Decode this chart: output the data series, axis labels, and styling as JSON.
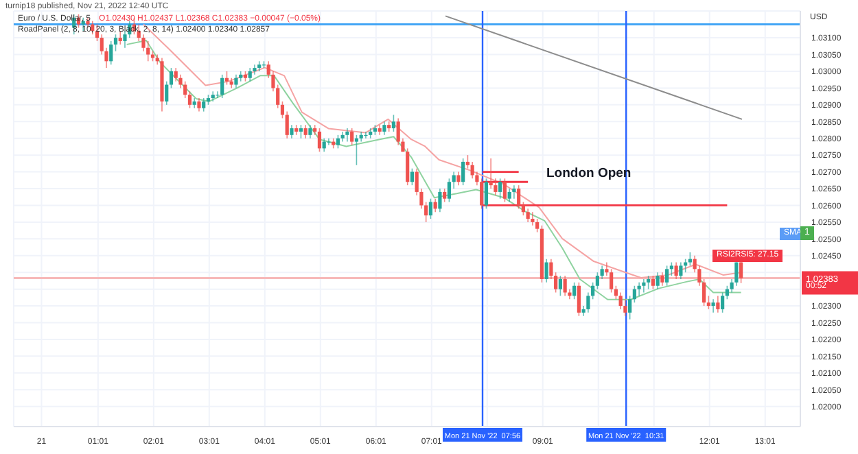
{
  "chart_data": {
    "type": "candlestick",
    "title": "Euro / U.S. Dollar, 5",
    "subtitle": "O1.02430 H1.02437 L1.02368 C1.02383 −0.00047 (−0.05%)",
    "ylabel": "USD",
    "annotations": [
      "London Open",
      "SMA",
      "1",
      "RSI2RSI5: 27.15",
      "00:52",
      "turnip18 published, Nov 21, 2022 12:40 UTC",
      "RoadPanel (2, 8, 10, 20, 3, Black, 2, 8, 14) 1.02400 1.02340 1.02857"
    ],
    "x": [
      "2022-11-21T00:35",
      "2022-11-21T00:40",
      "2022-11-21T00:45",
      "2022-11-21T00:50",
      "2022-11-21T00:55",
      "2022-11-21T01:00",
      "2022-11-21T01:05",
      "2022-11-21T01:10",
      "2022-11-21T01:15",
      "2022-11-21T01:20",
      "2022-11-21T01:25",
      "2022-11-21T01:30",
      "2022-11-21T01:35",
      "2022-11-21T01:40",
      "2022-11-21T01:45",
      "2022-11-21T01:50",
      "2022-11-21T01:55",
      "2022-11-21T02:00",
      "2022-11-21T02:05",
      "2022-11-21T02:10",
      "2022-11-21T02:15",
      "2022-11-21T02:20",
      "2022-11-21T02:25",
      "2022-11-21T02:30",
      "2022-11-21T02:35",
      "2022-11-21T02:40",
      "2022-11-21T02:45",
      "2022-11-21T02:50",
      "2022-11-21T02:55",
      "2022-11-21T03:00",
      "2022-11-21T03:05",
      "2022-11-21T03:10",
      "2022-11-21T03:15",
      "2022-11-21T03:20",
      "2022-11-21T03:25",
      "2022-11-21T03:30",
      "2022-11-21T03:35",
      "2022-11-21T03:40",
      "2022-11-21T03:45",
      "2022-11-21T03:50",
      "2022-11-21T03:55",
      "2022-11-21T04:00",
      "2022-11-21T04:05",
      "2022-11-21T04:10",
      "2022-11-21T04:15",
      "2022-11-21T04:20",
      "2022-11-21T04:25",
      "2022-11-21T04:30",
      "2022-11-21T04:35",
      "2022-11-21T04:40",
      "2022-11-21T04:45",
      "2022-11-21T04:50",
      "2022-11-21T04:55",
      "2022-11-21T05:00",
      "2022-11-21T05:05",
      "2022-11-21T05:10",
      "2022-11-21T05:15",
      "2022-11-21T05:20",
      "2022-11-21T05:25",
      "2022-11-21T05:30",
      "2022-11-21T05:35",
      "2022-11-21T05:40",
      "2022-11-21T05:45",
      "2022-11-21T05:50",
      "2022-11-21T05:55",
      "2022-11-21T06:00",
      "2022-11-21T06:05",
      "2022-11-21T06:10",
      "2022-11-21T06:15",
      "2022-11-21T06:20",
      "2022-11-21T06:25",
      "2022-11-21T06:30",
      "2022-11-21T06:35",
      "2022-11-21T06:40",
      "2022-11-21T06:45",
      "2022-11-21T06:50",
      "2022-11-21T06:55",
      "2022-11-21T07:00",
      "2022-11-21T07:05",
      "2022-11-21T07:10",
      "2022-11-21T07:15",
      "2022-11-21T07:20",
      "2022-11-21T07:25",
      "2022-11-21T07:30",
      "2022-11-21T07:35",
      "2022-11-21T07:40",
      "2022-11-21T07:45",
      "2022-11-21T07:50",
      "2022-11-21T07:55",
      "2022-11-21T08:00",
      "2022-11-21T08:05",
      "2022-11-21T08:10",
      "2022-11-21T08:15",
      "2022-11-21T08:20",
      "2022-11-21T08:25",
      "2022-11-21T08:30",
      "2022-11-21T08:35",
      "2022-11-21T08:40",
      "2022-11-21T08:45",
      "2022-11-21T08:50",
      "2022-11-21T08:55",
      "2022-11-21T09:00",
      "2022-11-21T09:05",
      "2022-11-21T09:10",
      "2022-11-21T09:15",
      "2022-11-21T09:20",
      "2022-11-21T09:25",
      "2022-11-21T09:30",
      "2022-11-21T09:35",
      "2022-11-21T09:40",
      "2022-11-21T09:45",
      "2022-11-21T09:50",
      "2022-11-21T09:55",
      "2022-11-21T10:00",
      "2022-11-21T10:05",
      "2022-11-21T10:10",
      "2022-11-21T10:15",
      "2022-11-21T10:20",
      "2022-11-21T10:25",
      "2022-11-21T10:30",
      "2022-11-21T10:35",
      "2022-11-21T10:40",
      "2022-11-21T10:45",
      "2022-11-21T10:50",
      "2022-11-21T10:55",
      "2022-11-21T11:00",
      "2022-11-21T11:05",
      "2022-11-21T11:10",
      "2022-11-21T11:15",
      "2022-11-21T11:20",
      "2022-11-21T11:25",
      "2022-11-21T11:30",
      "2022-11-21T11:35",
      "2022-11-21T11:40",
      "2022-11-21T11:45",
      "2022-11-21T11:50",
      "2022-11-21T11:55",
      "2022-11-21T12:00",
      "2022-11-21T12:05",
      "2022-11-21T12:10",
      "2022-11-21T12:15",
      "2022-11-21T12:20",
      "2022-11-21T12:25",
      "2022-11-21T12:30",
      "2022-11-21T12:35"
    ],
    "ohlc": [
      [
        1.0313,
        1.0317,
        1.0311,
        1.0316
      ],
      [
        1.0316,
        1.0317,
        1.0313,
        1.0314
      ],
      [
        1.0314,
        1.0316,
        1.0312,
        1.0315
      ],
      [
        1.0315,
        1.0316,
        1.0313,
        1.0314
      ],
      [
        1.0314,
        1.0315,
        1.0311,
        1.0312
      ],
      [
        1.0312,
        1.0314,
        1.0309,
        1.031
      ],
      [
        1.031,
        1.0311,
        1.0305,
        1.0306
      ],
      [
        1.0306,
        1.0307,
        1.0301,
        1.0303
      ],
      [
        1.0303,
        1.0309,
        1.0302,
        1.0308
      ],
      [
        1.0308,
        1.0311,
        1.0306,
        1.031
      ],
      [
        1.031,
        1.0312,
        1.0308,
        1.0309
      ],
      [
        1.0309,
        1.0312,
        1.0307,
        1.0311
      ],
      [
        1.0311,
        1.0315,
        1.031,
        1.0314
      ],
      [
        1.0314,
        1.0316,
        1.0311,
        1.0312
      ],
      [
        1.0312,
        1.0314,
        1.0309,
        1.031
      ],
      [
        1.031,
        1.0311,
        1.0306,
        1.0307
      ],
      [
        1.0307,
        1.0309,
        1.0303,
        1.0305
      ],
      [
        1.0305,
        1.0306,
        1.0303,
        1.0304
      ],
      [
        1.0304,
        1.0305,
        1.0302,
        1.0303
      ],
      [
        1.0303,
        1.0304,
        1.0288,
        1.0291
      ],
      [
        1.0291,
        1.0297,
        1.029,
        1.0296
      ],
      [
        1.0296,
        1.0301,
        1.0295,
        1.03
      ],
      [
        1.03,
        1.0301,
        1.0297,
        1.0298
      ],
      [
        1.0298,
        1.0299,
        1.0295,
        1.0296
      ],
      [
        1.0296,
        1.0297,
        1.0292,
        1.0293
      ],
      [
        1.0293,
        1.0294,
        1.0289,
        1.029
      ],
      [
        1.029,
        1.0292,
        1.0289,
        1.0291
      ],
      [
        1.0291,
        1.0292,
        1.0288,
        1.0289
      ],
      [
        1.0289,
        1.0292,
        1.0288,
        1.0291
      ],
      [
        1.0291,
        1.0293,
        1.029,
        1.0292
      ],
      [
        1.0292,
        1.0294,
        1.0291,
        1.0293
      ],
      [
        1.0293,
        1.0294,
        1.0292,
        1.0293
      ],
      [
        1.0293,
        1.0299,
        1.0292,
        1.0298
      ],
      [
        1.0298,
        1.03,
        1.0296,
        1.0297
      ],
      [
        1.0297,
        1.0298,
        1.0295,
        1.0296
      ],
      [
        1.0296,
        1.0299,
        1.0295,
        1.0298
      ],
      [
        1.0298,
        1.03,
        1.0297,
        1.0299
      ],
      [
        1.0299,
        1.03,
        1.0297,
        1.0298
      ],
      [
        1.0298,
        1.0301,
        1.0297,
        1.03
      ],
      [
        1.03,
        1.0302,
        1.0299,
        1.0301
      ],
      [
        1.0301,
        1.0303,
        1.03,
        1.0302
      ],
      [
        1.0302,
        1.0303,
        1.0301,
        1.0302
      ],
      [
        1.0302,
        1.0303,
        1.0298,
        1.0299
      ],
      [
        1.0299,
        1.03,
        1.0294,
        1.0295
      ],
      [
        1.0295,
        1.0296,
        1.0289,
        1.029
      ],
      [
        1.029,
        1.0291,
        1.0286,
        1.0287
      ],
      [
        1.0287,
        1.0288,
        1.028,
        1.0281
      ],
      [
        1.0281,
        1.0284,
        1.028,
        1.0283
      ],
      [
        1.0283,
        1.0284,
        1.0281,
        1.0282
      ],
      [
        1.0282,
        1.0284,
        1.028,
        1.0283
      ],
      [
        1.0283,
        1.0284,
        1.028,
        1.0281
      ],
      [
        1.0281,
        1.0284,
        1.028,
        1.0283
      ],
      [
        1.0283,
        1.0284,
        1.0281,
        1.0282
      ],
      [
        1.0282,
        1.0283,
        1.0276,
        1.0277
      ],
      [
        1.0277,
        1.028,
        1.0276,
        1.0279
      ],
      [
        1.0279,
        1.028,
        1.0278,
        1.0279
      ],
      [
        1.0279,
        1.028,
        1.0277,
        1.0278
      ],
      [
        1.0278,
        1.0281,
        1.0277,
        1.028
      ],
      [
        1.028,
        1.0282,
        1.0279,
        1.0281
      ],
      [
        1.0281,
        1.0283,
        1.0279,
        1.0282
      ],
      [
        1.0282,
        1.0283,
        1.0278,
        1.0279
      ],
      [
        1.0279,
        1.0281,
        1.0272,
        1.028
      ],
      [
        1.028,
        1.0282,
        1.0279,
        1.0281
      ],
      [
        1.0281,
        1.0282,
        1.028,
        1.0281
      ],
      [
        1.0281,
        1.0283,
        1.028,
        1.0282
      ],
      [
        1.0282,
        1.0284,
        1.0281,
        1.0283
      ],
      [
        1.0283,
        1.0284,
        1.0281,
        1.0282
      ],
      [
        1.0282,
        1.0285,
        1.0281,
        1.0284
      ],
      [
        1.0284,
        1.0285,
        1.0282,
        1.0283
      ],
      [
        1.0283,
        1.0287,
        1.0282,
        1.0285
      ],
      [
        1.0285,
        1.0286,
        1.0278,
        1.0279
      ],
      [
        1.0279,
        1.028,
        1.0276,
        1.0276
      ],
      [
        1.0276,
        1.0277,
        1.0266,
        1.0267
      ],
      [
        1.0267,
        1.0271,
        1.0266,
        1.027
      ],
      [
        1.027,
        1.0271,
        1.0263,
        1.0264
      ],
      [
        1.0264,
        1.0265,
        1.0259,
        1.026
      ],
      [
        1.026,
        1.0261,
        1.0255,
        1.0257
      ],
      [
        1.0257,
        1.0262,
        1.0256,
        1.0261
      ],
      [
        1.0261,
        1.0262,
        1.0258,
        1.0259
      ],
      [
        1.0259,
        1.0265,
        1.0258,
        1.0264
      ],
      [
        1.0264,
        1.0265,
        1.0261,
        1.0262
      ],
      [
        1.0262,
        1.0268,
        1.0261,
        1.0267
      ],
      [
        1.0267,
        1.027,
        1.0265,
        1.0269
      ],
      [
        1.0269,
        1.027,
        1.0266,
        1.0267
      ],
      [
        1.0267,
        1.0274,
        1.0266,
        1.0273
      ],
      [
        1.0273,
        1.0275,
        1.0271,
        1.0272
      ],
      [
        1.0272,
        1.0273,
        1.0268,
        1.0269
      ],
      [
        1.0269,
        1.027,
        1.0266,
        1.0267
      ],
      [
        1.0267,
        1.0268,
        1.0259,
        1.026
      ],
      [
        1.026,
        1.0268,
        1.0259,
        1.0267
      ],
      [
        1.0267,
        1.0274,
        1.0265,
        1.0266
      ],
      [
        1.0266,
        1.0268,
        1.0263,
        1.0264
      ],
      [
        1.0264,
        1.0268,
        1.0262,
        1.0267
      ],
      [
        1.0267,
        1.0268,
        1.0261,
        1.0262
      ],
      [
        1.0262,
        1.0265,
        1.0261,
        1.0264
      ],
      [
        1.0264,
        1.0266,
        1.0262,
        1.0265
      ],
      [
        1.0265,
        1.0266,
        1.0259,
        1.026
      ],
      [
        1.026,
        1.0261,
        1.0257,
        1.0258
      ],
      [
        1.0258,
        1.0259,
        1.0255,
        1.0256
      ],
      [
        1.0256,
        1.0258,
        1.0254,
        1.0255
      ],
      [
        1.0255,
        1.0256,
        1.0252,
        1.0253
      ],
      [
        1.0253,
        1.0254,
        1.0237,
        1.0238
      ],
      [
        1.0238,
        1.0244,
        1.0237,
        1.0243
      ],
      [
        1.0243,
        1.0244,
        1.0238,
        1.0239
      ],
      [
        1.0239,
        1.024,
        1.0234,
        1.0235
      ],
      [
        1.0235,
        1.0239,
        1.0233,
        1.0238
      ],
      [
        1.0238,
        1.0239,
        1.0233,
        1.0234
      ],
      [
        1.0234,
        1.0235,
        1.0232,
        1.0233
      ],
      [
        1.0233,
        1.0237,
        1.0232,
        1.0236
      ],
      [
        1.0236,
        1.0237,
        1.0227,
        1.0228
      ],
      [
        1.0228,
        1.023,
        1.0227,
        1.0229
      ],
      [
        1.0229,
        1.0234,
        1.0228,
        1.0233
      ],
      [
        1.0233,
        1.0237,
        1.0232,
        1.0236
      ],
      [
        1.0236,
        1.024,
        1.0235,
        1.0239
      ],
      [
        1.0239,
        1.0242,
        1.0238,
        1.0241
      ],
      [
        1.0241,
        1.0243,
        1.0239,
        1.024
      ],
      [
        1.024,
        1.0241,
        1.0234,
        1.0235
      ],
      [
        1.0235,
        1.0236,
        1.0232,
        1.0233
      ],
      [
        1.0233,
        1.0234,
        1.0229,
        1.023
      ],
      [
        1.023,
        1.0232,
        1.0227,
        1.0228
      ],
      [
        1.0228,
        1.0233,
        1.0226,
        1.0232
      ],
      [
        1.0232,
        1.0236,
        1.0231,
        1.0235
      ],
      [
        1.0235,
        1.0237,
        1.0233,
        1.0236
      ],
      [
        1.0236,
        1.0238,
        1.0234,
        1.0237
      ],
      [
        1.0237,
        1.0239,
        1.0235,
        1.0238
      ],
      [
        1.0238,
        1.0239,
        1.0235,
        1.0236
      ],
      [
        1.0236,
        1.024,
        1.0235,
        1.0239
      ],
      [
        1.0239,
        1.024,
        1.0236,
        1.0237
      ],
      [
        1.0237,
        1.0242,
        1.0236,
        1.0241
      ],
      [
        1.0241,
        1.0243,
        1.0239,
        1.0242
      ],
      [
        1.0242,
        1.0243,
        1.0238,
        1.0239
      ],
      [
        1.0239,
        1.0243,
        1.0238,
        1.0242
      ],
      [
        1.0242,
        1.0244,
        1.024,
        1.0243
      ],
      [
        1.0243,
        1.0246,
        1.0242,
        1.0244
      ],
      [
        1.0244,
        1.0245,
        1.024,
        1.0241
      ],
      [
        1.0241,
        1.0242,
        1.0236,
        1.0237
      ],
      [
        1.0237,
        1.0238,
        1.023,
        1.0231
      ],
      [
        1.0231,
        1.0233,
        1.0229,
        1.023
      ],
      [
        1.023,
        1.0232,
        1.0228,
        1.0231
      ],
      [
        1.0231,
        1.0233,
        1.0228,
        1.0229
      ],
      [
        1.0229,
        1.0234,
        1.0228,
        1.0233
      ],
      [
        1.0233,
        1.0236,
        1.0232,
        1.0235
      ],
      [
        1.0235,
        1.0238,
        1.0234,
        1.0237
      ],
      [
        1.0237,
        1.0243,
        1.0236,
        1.0243
      ],
      [
        1.0243,
        1.02437,
        1.02368,
        1.02383
      ]
    ],
    "series": [
      {
        "type": "line",
        "color": "#f5a3a3",
        "x": [
          "2022-11-21T01:50",
          "2022-11-21T02:17",
          "2022-11-21T02:57",
          "2022-11-21T03:22",
          "2022-11-21T04:01",
          "2022-11-21T04:22",
          "2022-11-21T04:41",
          "2022-11-21T05:10",
          "2022-11-21T05:50",
          "2022-11-21T06:14",
          "2022-11-21T06:39",
          "2022-11-21T06:54",
          "2022-11-21T07:09",
          "2022-11-21T07:43",
          "2022-11-21T08:19",
          "2022-11-21T08:57",
          "2022-11-21T09:22",
          "2022-11-21T09:56",
          "2022-11-21T10:26",
          "2022-11-21T10:47",
          "2022-11-21T11:16",
          "2022-11-21T11:46",
          "2022-11-21T12:16",
          "2022-11-21T12:35"
        ],
        "values": [
          1.0314,
          1.03068,
          1.02958,
          1.0297,
          1.03011,
          1.02987,
          1.02878,
          1.02829,
          1.02817,
          1.02857,
          1.02797,
          1.02776,
          1.02736,
          1.02704,
          1.02663,
          1.02594,
          1.02501,
          1.02433,
          1.02404,
          1.02384,
          1.02392,
          1.02424,
          1.02392,
          1.024
        ]
      },
      {
        "type": "line",
        "color": "#8fd3a0",
        "x": [
          "2022-11-21T01:32",
          "2022-11-21T01:53",
          "2022-11-21T02:08",
          "2022-11-21T02:28",
          "2022-11-21T02:47",
          "2022-11-21T03:01",
          "2022-11-21T03:31",
          "2022-11-21T03:56",
          "2022-11-21T04:11",
          "2022-11-21T04:31",
          "2022-11-21T05:00",
          "2022-11-21T05:29",
          "2022-11-21T06:05",
          "2022-11-21T06:20",
          "2022-11-21T06:39",
          "2022-11-21T07:04",
          "2022-11-21T07:28",
          "2022-11-21T07:49",
          "2022-11-21T08:19",
          "2022-11-21T08:42",
          "2022-11-21T09:03",
          "2022-11-21T09:22",
          "2022-11-21T09:41",
          "2022-11-21T10:11",
          "2022-11-21T10:36",
          "2022-11-21T11:06",
          "2022-11-21T11:36",
          "2022-11-21T11:50",
          "2022-11-21T12:05",
          "2022-11-21T12:35"
        ],
        "values": [
          1.0308,
          1.03092,
          1.03027,
          1.02971,
          1.02918,
          1.0291,
          1.0295,
          1.02987,
          1.02987,
          1.02906,
          1.02797,
          1.02776,
          1.02797,
          1.02805,
          1.02744,
          1.02623,
          1.02635,
          1.02647,
          1.02623,
          1.02582,
          1.02554,
          1.02473,
          1.0238,
          1.02319,
          1.02319,
          1.02352,
          1.02372,
          1.0238,
          1.0234,
          1.0234
        ]
      },
      {
        "type": "line",
        "color": "#8c8c8c",
        "x": [
          "2022-11-21T07:16",
          "2022-11-21T12:36"
        ],
        "values": [
          1.03165,
          1.02857
        ]
      },
      {
        "type": "line",
        "color": "#f23645",
        "x": [
          "2022-11-21T07:56",
          "2022-11-21T08:35"
        ],
        "values": [
          1.027,
          1.027
        ]
      },
      {
        "type": "line",
        "color": "#f23645",
        "x": [
          "2022-11-21T07:56",
          "2022-11-21T08:45"
        ],
        "values": [
          1.0267,
          1.0267
        ]
      },
      {
        "type": "line",
        "color": "#f23645",
        "x": [
          "2022-11-21T07:56",
          "2022-11-21T12:20"
        ],
        "values": [
          1.026,
          1.026
        ]
      }
    ],
    "ref_lines": [
      {
        "axis": "y",
        "value": 1.0314,
        "color": "#42a5f5"
      },
      {
        "axis": "y",
        "value": 1.02383,
        "label": "1.02383",
        "color": "#f7b9b9"
      },
      {
        "axis": "x",
        "value": "2022-11-21T07:56",
        "label": "Mon 21 Nov '22  07:56",
        "color": "#2962ff"
      },
      {
        "axis": "x",
        "value": "2022-11-21T10:31",
        "label": "Mon 21 Nov '22  10:31",
        "color": "#2962ff"
      }
    ],
    "xlim": [
      "2022-11-20T23:30",
      "2022-11-21T13:39"
    ],
    "ylim": [
      1.0194,
      1.0318
    ],
    "xticks": [
      {
        "value": "2022-11-21T00:00",
        "label": "21"
      },
      {
        "value": "2022-11-21T01:01",
        "label": "01:01"
      },
      {
        "value": "2022-11-21T02:01",
        "label": "02:01"
      },
      {
        "value": "2022-11-21T03:01",
        "label": "03:01"
      },
      {
        "value": "2022-11-21T04:01",
        "label": "04:01"
      },
      {
        "value": "2022-11-21T05:01",
        "label": "05:01"
      },
      {
        "value": "2022-11-21T06:01",
        "label": "06:01"
      },
      {
        "value": "2022-11-21T07:01",
        "label": "07:01"
      },
      {
        "value": "2022-11-21T08:01",
        "label": null
      },
      {
        "value": "2022-11-21T09:01",
        "label": "09:01"
      },
      {
        "value": "2022-11-21T10:01",
        "label": null
      },
      {
        "value": "2022-11-21T11:01",
        "label": null
      },
      {
        "value": "2022-11-21T12:01",
        "label": "12:01"
      },
      {
        "value": "2022-11-21T13:01",
        "label": "13:01"
      }
    ],
    "yticks": [
      {
        "value": 1.031,
        "label": "1.03100"
      },
      {
        "value": 1.0305,
        "label": "1.03050"
      },
      {
        "value": 1.03,
        "label": "1.03000"
      },
      {
        "value": 1.0295,
        "label": "1.02950"
      },
      {
        "value": 1.029,
        "label": "1.02900"
      },
      {
        "value": 1.0285,
        "label": "1.02850"
      },
      {
        "value": 1.028,
        "label": "1.02800"
      },
      {
        "value": 1.0275,
        "label": "1.02750"
      },
      {
        "value": 1.027,
        "label": "1.02700"
      },
      {
        "value": 1.0265,
        "label": "1.02650"
      },
      {
        "value": 1.026,
        "label": "1.02600"
      },
      {
        "value": 1.0255,
        "label": "1.02550"
      },
      {
        "value": 1.025,
        "label": "1.02500"
      },
      {
        "value": 1.0245,
        "label": "1.02450"
      },
      {
        "value": 1.024,
        "label": null
      },
      {
        "value": 1.0235,
        "label": null
      },
      {
        "value": 1.023,
        "label": "1.02300"
      },
      {
        "value": 1.0225,
        "label": "1.02250"
      },
      {
        "value": 1.022,
        "label": "1.02200"
      },
      {
        "value": 1.0215,
        "label": "1.02150"
      },
      {
        "value": 1.021,
        "label": "1.02100"
      },
      {
        "value": 1.0205,
        "label": "1.02050"
      },
      {
        "value": 1.02,
        "label": "1.02000"
      }
    ],
    "grid": true
  }
}
